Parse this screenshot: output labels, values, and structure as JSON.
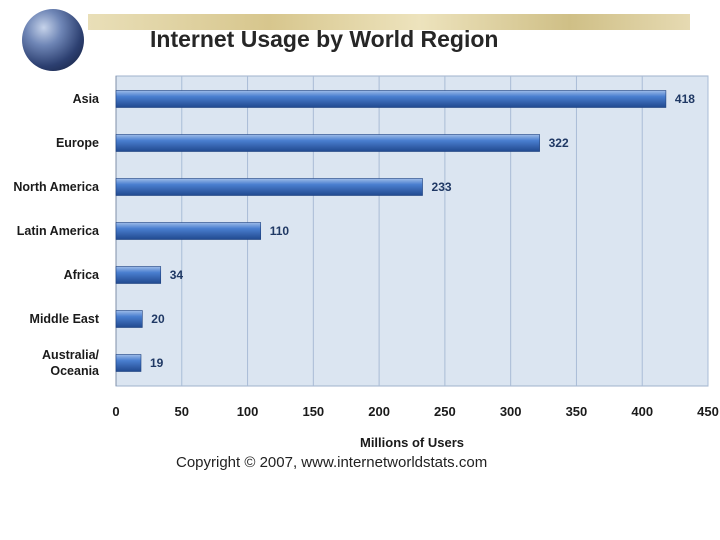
{
  "header": {
    "title": "Internet Usage by World Region",
    "globe_icon": "globe-icon"
  },
  "footer": {
    "copyright": "Copyright © 2007, www.internetworldstats.com"
  },
  "colors": {
    "plot_background": "#dbe5f1",
    "bar": "#3a6cc2",
    "gridline": "#a9bcd6"
  },
  "chart_data": {
    "type": "bar",
    "orientation": "horizontal",
    "title": "Internet Usage by World Region",
    "xlabel": "Millions of Users",
    "ylabel": "",
    "categories": [
      [
        "Asia"
      ],
      [
        "Europe"
      ],
      [
        "North America"
      ],
      [
        "Latin America"
      ],
      [
        "Africa"
      ],
      [
        "Middle East"
      ],
      [
        "Australia/",
        "Oceania"
      ]
    ],
    "values": [
      418,
      322,
      233,
      110,
      34,
      20,
      19
    ],
    "xlim": [
      0,
      450
    ],
    "xticks": [
      0,
      50,
      100,
      150,
      200,
      250,
      300,
      350,
      400,
      450
    ],
    "grid": true,
    "legend": "none"
  }
}
